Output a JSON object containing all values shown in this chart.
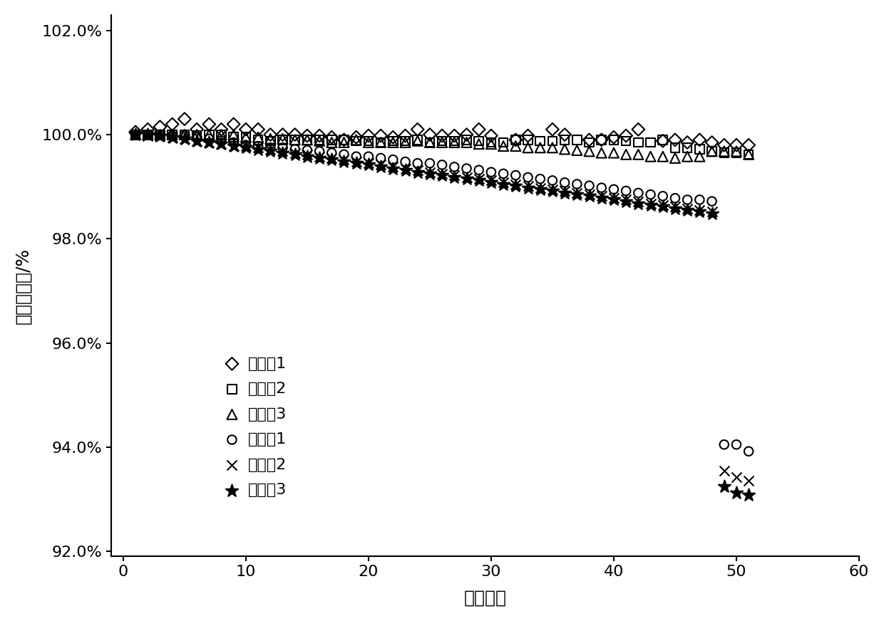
{
  "xlabel": "循环次数",
  "ylabel": "容量保持率/%",
  "xlim": [
    -1,
    60
  ],
  "ylim": [
    0.919,
    1.023
  ],
  "xticks": [
    0,
    10,
    20,
    30,
    40,
    50,
    60
  ],
  "yticks": [
    0.92,
    0.94,
    0.96,
    0.98,
    1.0,
    1.02
  ],
  "ytick_labels": [
    "92.0%",
    "94.0%",
    "96.0%",
    "98.0%",
    "100.0%",
    "102.0%"
  ],
  "series": [
    {
      "label": "实施例1",
      "marker": "D",
      "hollow": true,
      "markersize": 9,
      "x": [
        1,
        2,
        3,
        4,
        5,
        6,
        7,
        8,
        9,
        10,
        11,
        12,
        13,
        14,
        15,
        16,
        17,
        18,
        19,
        20,
        21,
        22,
        23,
        24,
        25,
        26,
        27,
        28,
        29,
        30,
        32,
        33,
        35,
        36,
        38,
        39,
        40,
        41,
        42,
        44,
        45,
        46,
        47,
        48,
        49,
        50,
        51
      ],
      "y": [
        1.0005,
        1.001,
        1.0015,
        1.002,
        1.003,
        1.001,
        1.002,
        1.001,
        1.002,
        1.001,
        1.001,
        1.0,
        1.0,
        1.0,
        0.9998,
        0.9998,
        0.9995,
        0.999,
        0.9995,
        0.9998,
        0.9998,
        0.9995,
        0.9998,
        1.001,
        1.0,
        0.9998,
        0.9998,
        1.0,
        1.001,
        0.9998,
        0.999,
        0.9998,
        1.001,
        1.0,
        0.999,
        0.999,
        0.9995,
        0.9998,
        1.001,
        0.9988,
        0.999,
        0.9985,
        0.999,
        0.9985,
        0.998,
        0.998,
        0.998
      ]
    },
    {
      "label": "实施例2",
      "marker": "s",
      "hollow": true,
      "markersize": 9,
      "x": [
        1,
        2,
        3,
        4,
        5,
        6,
        7,
        8,
        9,
        10,
        11,
        12,
        13,
        14,
        15,
        16,
        17,
        18,
        19,
        20,
        21,
        22,
        23,
        24,
        25,
        26,
        27,
        28,
        29,
        30,
        31,
        32,
        33,
        34,
        35,
        36,
        37,
        38,
        39,
        40,
        41,
        42,
        43,
        44,
        45,
        46,
        47,
        48,
        49,
        50,
        51
      ],
      "y": [
        1.0,
        1.0,
        1.0,
        1.0,
        1.0,
        0.9998,
        1.0,
        1.0,
        0.9995,
        0.9995,
        0.999,
        0.9988,
        0.999,
        0.999,
        0.999,
        0.999,
        0.999,
        0.999,
        0.9988,
        0.9988,
        0.9985,
        0.9988,
        0.9988,
        0.999,
        0.9985,
        0.9988,
        0.9988,
        0.999,
        0.9988,
        0.9985,
        0.9985,
        0.999,
        0.999,
        0.9988,
        0.9988,
        0.999,
        0.999,
        0.9985,
        0.999,
        0.999,
        0.9988,
        0.9985,
        0.9985,
        0.999,
        0.9975,
        0.9975,
        0.9972,
        0.9968,
        0.9965,
        0.9965,
        0.9962
      ]
    },
    {
      "label": "实施例3",
      "marker": "^",
      "hollow": true,
      "markersize": 10,
      "x": [
        1,
        2,
        3,
        4,
        5,
        6,
        7,
        8,
        9,
        10,
        11,
        12,
        13,
        14,
        15,
        16,
        17,
        18,
        19,
        20,
        21,
        22,
        23,
        24,
        25,
        26,
        27,
        28,
        29,
        30,
        31,
        32,
        33,
        34,
        35,
        36,
        37,
        38,
        39,
        40,
        41,
        42,
        43,
        44,
        45,
        46,
        47,
        48,
        49,
        50,
        51
      ],
      "y": [
        1.0,
        1.0,
        1.0,
        1.0,
        1.0,
        1.0,
        1.0,
        1.0,
        1.0,
        0.9995,
        0.9995,
        0.9992,
        0.9992,
        0.999,
        0.999,
        0.9988,
        0.9985,
        0.9985,
        0.999,
        0.9985,
        0.9985,
        0.9985,
        0.9985,
        0.9988,
        0.9985,
        0.9985,
        0.9985,
        0.9985,
        0.9982,
        0.9982,
        0.9978,
        0.9978,
        0.9975,
        0.9975,
        0.9975,
        0.9972,
        0.997,
        0.9968,
        0.9965,
        0.9965,
        0.9962,
        0.9962,
        0.9958,
        0.9958,
        0.9955,
        0.9958,
        0.9958,
        0.9968,
        0.9968,
        0.9968,
        0.9962
      ]
    },
    {
      "label": "对比例1",
      "marker": "o",
      "hollow": true,
      "markersize": 9,
      "x": [
        1,
        2,
        3,
        4,
        5,
        6,
        7,
        8,
        9,
        10,
        11,
        12,
        13,
        14,
        15,
        16,
        17,
        18,
        19,
        20,
        21,
        22,
        23,
        24,
        25,
        26,
        27,
        28,
        29,
        30,
        31,
        32,
        33,
        34,
        35,
        36,
        37,
        38,
        39,
        40,
        41,
        42,
        43,
        44,
        45,
        46,
        47,
        48,
        49,
        50,
        51
      ],
      "y": [
        1.0,
        1.0,
        1.0,
        0.9998,
        0.9998,
        0.9995,
        0.9992,
        0.9988,
        0.9985,
        0.998,
        0.9978,
        0.9975,
        0.9975,
        0.9972,
        0.997,
        0.9968,
        0.9965,
        0.9962,
        0.9958,
        0.9958,
        0.9955,
        0.9952,
        0.9948,
        0.9945,
        0.9945,
        0.9942,
        0.9938,
        0.9935,
        0.9932,
        0.9928,
        0.9925,
        0.9922,
        0.9918,
        0.9915,
        0.9912,
        0.9908,
        0.9905,
        0.9902,
        0.9898,
        0.9895,
        0.9892,
        0.9888,
        0.9885,
        0.9882,
        0.9878,
        0.9875,
        0.9875,
        0.9872,
        0.9405,
        0.9405,
        0.9392
      ]
    },
    {
      "label": "对比例2",
      "marker": "x",
      "hollow": false,
      "markersize": 10,
      "x": [
        1,
        2,
        3,
        4,
        5,
        6,
        7,
        8,
        9,
        10,
        11,
        12,
        13,
        14,
        15,
        16,
        17,
        18,
        19,
        20,
        21,
        22,
        23,
        24,
        25,
        26,
        27,
        28,
        29,
        30,
        31,
        32,
        33,
        34,
        35,
        36,
        37,
        38,
        39,
        40,
        41,
        42,
        43,
        44,
        45,
        46,
        47,
        48,
        49,
        50,
        51
      ],
      "y": [
        1.0,
        0.9998,
        0.9998,
        0.9995,
        0.9992,
        0.9988,
        0.9985,
        0.9982,
        0.9978,
        0.9978,
        0.9975,
        0.9972,
        0.9968,
        0.9965,
        0.9962,
        0.9958,
        0.9955,
        0.9952,
        0.9948,
        0.9945,
        0.9942,
        0.9938,
        0.9935,
        0.9932,
        0.9928,
        0.9925,
        0.9922,
        0.9918,
        0.9915,
        0.9912,
        0.9908,
        0.9905,
        0.9902,
        0.9898,
        0.9895,
        0.9892,
        0.9888,
        0.9885,
        0.9882,
        0.9878,
        0.9875,
        0.9872,
        0.9868,
        0.9865,
        0.9862,
        0.9858,
        0.9855,
        0.9852,
        0.9355,
        0.9342,
        0.9335
      ]
    },
    {
      "label": "对比例3",
      "marker": "*",
      "hollow": false,
      "markersize": 13,
      "x": [
        1,
        2,
        3,
        4,
        5,
        6,
        7,
        8,
        9,
        10,
        11,
        12,
        13,
        14,
        15,
        16,
        17,
        18,
        19,
        20,
        21,
        22,
        23,
        24,
        25,
        26,
        27,
        28,
        29,
        30,
        31,
        32,
        33,
        34,
        35,
        36,
        37,
        38,
        39,
        40,
        41,
        42,
        43,
        44,
        45,
        46,
        47,
        48,
        49,
        50,
        51
      ],
      "y": [
        1.0,
        1.0,
        0.9998,
        0.9995,
        0.9992,
        0.9988,
        0.9985,
        0.9982,
        0.9978,
        0.9975,
        0.9972,
        0.9968,
        0.9965,
        0.9962,
        0.9958,
        0.9955,
        0.9952,
        0.9948,
        0.9945,
        0.9942,
        0.9938,
        0.9935,
        0.9932,
        0.9928,
        0.9925,
        0.9922,
        0.9918,
        0.9915,
        0.9912,
        0.9908,
        0.9905,
        0.9902,
        0.9898,
        0.9895,
        0.9892,
        0.9888,
        0.9885,
        0.9882,
        0.9878,
        0.9875,
        0.9872,
        0.9868,
        0.9865,
        0.9862,
        0.9858,
        0.9855,
        0.9852,
        0.9848,
        0.9325,
        0.9312,
        0.9308
      ]
    }
  ],
  "background_color": "#ffffff",
  "fontsize": 16
}
